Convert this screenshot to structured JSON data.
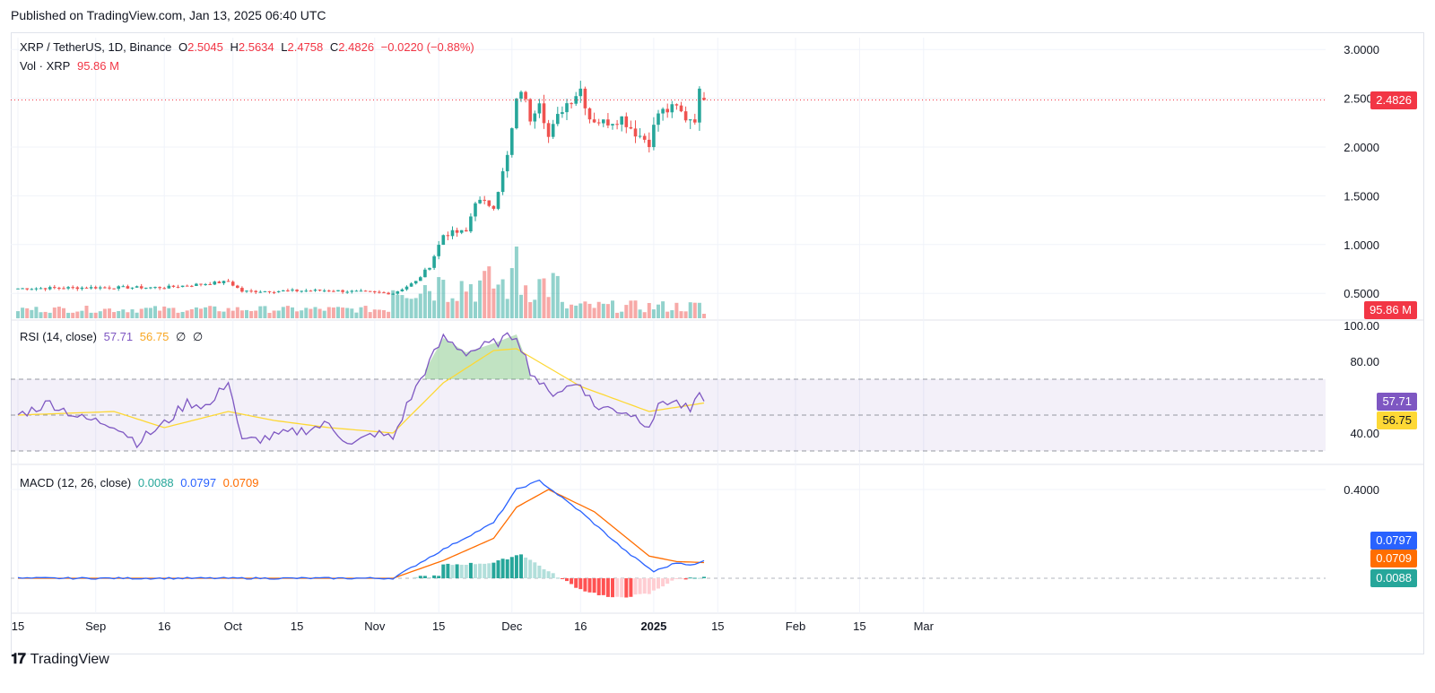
{
  "published": "Published on TradingView.com, Jan 13, 2025 06:40 UTC",
  "legend": {
    "symbol": "XRP / TetherUS, 1D, Binance",
    "o_label": "O",
    "o_val": "2.5045",
    "h_label": "H",
    "h_val": "2.5634",
    "l_label": "L",
    "l_val": "2.4758",
    "c_label": "C",
    "c_val": "2.4826",
    "change": "−0.0220 (−0.88%)",
    "vol_label": "Vol · XRP",
    "vol_val": "95.86 M",
    "rsi_label": "RSI (14, close)",
    "rsi_val": "57.71",
    "rsi_ma": "56.75",
    "rsi_x1": "∅",
    "rsi_x2": "∅",
    "macd_label": "MACD (12, 26, close)",
    "macd_hist": "0.0088",
    "macd_val": "0.0797",
    "macd_sig": "0.0709"
  },
  "badges": {
    "price": "2.4826",
    "volume": "95.86 M",
    "rsi": "57.71",
    "rsi_ma": "56.75",
    "macd": "0.0797",
    "signal": "0.0709",
    "hist": "0.0088"
  },
  "colors": {
    "up": "#26a69a",
    "down": "#ef5350",
    "rsi": "#7e57c2",
    "rsi_ma": "#fdd835",
    "macd": "#2962ff",
    "signal": "#ff6d00",
    "grid": "#f0f3fa"
  },
  "footer": {
    "brand": "TradingView"
  },
  "chart_data": [
    {
      "type": "candlestick",
      "title": "XRP / TetherUS, 1D, Binance",
      "y_ticks": [
        "3.0000",
        "2.5000",
        "2.0000",
        "1.5000",
        "1.0000",
        "0.5000"
      ],
      "ylim": [
        0.3,
        3.1
      ],
      "x_ticks": [
        "15",
        "Sep",
        "16",
        "Oct",
        "15",
        "Nov",
        "15",
        "Dec",
        "16",
        "2025",
        "15",
        "Feb",
        "15",
        "Mar"
      ],
      "last_price": 2.4826,
      "segments": [
        {
          "from": "Aug 15",
          "to": "Nov 5",
          "approx_close": 0.55
        },
        {
          "date": "Nov 16",
          "close": 0.85
        },
        {
          "date": "Nov 23",
          "close": 1.45
        },
        {
          "date": "Dec 1",
          "close": 2.4
        },
        {
          "date": "Dec 3",
          "high": 2.9,
          "close": 2.6
        },
        {
          "date": "Dec 9",
          "low": 1.9,
          "close": 2.15
        },
        {
          "date": "Dec 16",
          "high": 2.7,
          "close": 2.5
        },
        {
          "date": "Dec 30",
          "low": 2.0,
          "close": 2.05
        },
        {
          "date": "Jan 6",
          "close": 2.4
        },
        {
          "date": "Jan 12",
          "open": 2.5045,
          "high": 2.5634,
          "low": 2.4758,
          "close": 2.4826
        }
      ]
    },
    {
      "type": "bar",
      "title": "Vol · XRP",
      "last_value": "95.86 M",
      "peaks": [
        {
          "date": "Dec 2",
          "relative": 1.0
        },
        {
          "date": "Nov 16",
          "relative": 0.8
        }
      ]
    },
    {
      "type": "line",
      "title": "RSI (14, close)",
      "y_ticks": [
        "100.00",
        "80.00",
        "40.00"
      ],
      "ylim": [
        20,
        100
      ],
      "bands": [
        30,
        50,
        70
      ],
      "series": [
        {
          "name": "RSI",
          "points": [
            [
              "Aug 15",
              50
            ],
            [
              "Aug 22",
              57
            ],
            [
              "Aug 29",
              48
            ],
            [
              "Sep 5",
              45
            ],
            [
              "Sep 10",
              35
            ],
            [
              "Sep 16",
              45
            ],
            [
              "Sep 21",
              57
            ],
            [
              "Sep 26",
              55
            ],
            [
              "Sep 30",
              70
            ],
            [
              "Oct 3",
              35
            ],
            [
              "Oct 10",
              38
            ],
            [
              "Oct 17",
              42
            ],
            [
              "Oct 22",
              45
            ],
            [
              "Oct 27",
              33
            ],
            [
              "Nov 1",
              40
            ],
            [
              "Nov 5",
              37
            ],
            [
              "Nov 8",
              55
            ],
            [
              "Nov 12",
              75
            ],
            [
              "Nov 16",
              93
            ],
            [
              "Nov 21",
              85
            ],
            [
              "Nov 27",
              90
            ],
            [
              "Dec 2",
              95
            ],
            [
              "Dec 5",
              75
            ],
            [
              "Dec 9",
              62
            ],
            [
              "Dec 16",
              68
            ],
            [
              "Dec 19",
              55
            ],
            [
              "Dec 26",
              52
            ],
            [
              "Dec 31",
              45
            ],
            [
              "Jan 3",
              58
            ],
            [
              "Jan 6",
              57
            ],
            [
              "Jan 9",
              52
            ],
            [
              "Jan 11",
              60
            ],
            [
              "Jan 12",
              57.71
            ]
          ]
        },
        {
          "name": "RSI-based MA",
          "points": [
            [
              "Aug 15",
              50
            ],
            [
              "Sep 5",
              52
            ],
            [
              "Sep 16",
              43
            ],
            [
              "Sep 30",
              52
            ],
            [
              "Oct 10",
              47
            ],
            [
              "Oct 22",
              43
            ],
            [
              "Nov 5",
              40
            ],
            [
              "Nov 16",
              68
            ],
            [
              "Nov 27",
              86
            ],
            [
              "Dec 2",
              87
            ],
            [
              "Dec 16",
              66
            ],
            [
              "Dec 31",
              52
            ],
            [
              "Jan 12",
              56.75
            ]
          ]
        }
      ]
    },
    {
      "type": "line",
      "title": "MACD (12, 26, close)",
      "y_ticks": [
        "0.4000"
      ],
      "ylim": [
        -0.1,
        0.45
      ],
      "series": [
        {
          "name": "MACD",
          "points": [
            [
              "Aug 15",
              0
            ],
            [
              "Nov 5",
              0
            ],
            [
              "Nov 16",
              0.13
            ],
            [
              "Nov 27",
              0.25
            ],
            [
              "Dec 2",
              0.4
            ],
            [
              "Dec 7",
              0.44
            ],
            [
              "Dec 16",
              0.3
            ],
            [
              "Dec 26",
              0.12
            ],
            [
              "Jan 1",
              0.03
            ],
            [
              "Jan 6",
              0.07
            ],
            [
              "Jan 10",
              0.06
            ],
            [
              "Jan 12",
              0.0797
            ]
          ]
        },
        {
          "name": "Signal",
          "points": [
            [
              "Aug 15",
              0
            ],
            [
              "Nov 5",
              0
            ],
            [
              "Nov 16",
              0.08
            ],
            [
              "Nov 27",
              0.18
            ],
            [
              "Dec 2",
              0.32
            ],
            [
              "Dec 9",
              0.4
            ],
            [
              "Dec 19",
              0.3
            ],
            [
              "Dec 31",
              0.1
            ],
            [
              "Jan 6",
              0.075
            ],
            [
              "Jan 12",
              0.0709
            ]
          ]
        },
        {
          "name": "Histogram",
          "points": [
            [
              "Nov 16",
              0.06
            ],
            [
              "Nov 27",
              0.07
            ],
            [
              "Dec 3",
              0.11
            ],
            [
              "Dec 9",
              0.03
            ],
            [
              "Dec 16",
              -0.05
            ],
            [
              "Dec 23",
              -0.09
            ],
            [
              "Dec 31",
              -0.07
            ],
            [
              "Jan 5",
              -0.01
            ],
            [
              "Jan 12",
              0.0088
            ]
          ]
        }
      ]
    }
  ]
}
